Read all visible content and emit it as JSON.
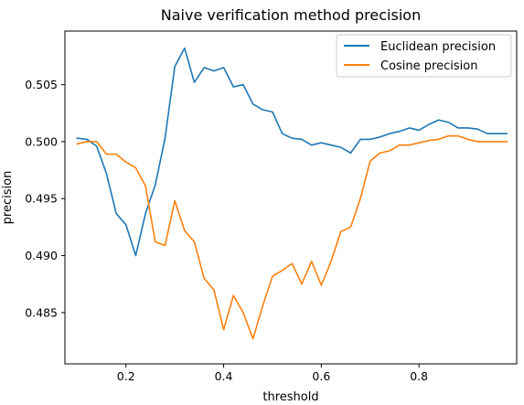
{
  "chart_data": {
    "type": "line",
    "title": "Naive verification method precision",
    "xlabel": "threshold",
    "ylabel": "precision",
    "xlim": [
      0.075,
      1.0
    ],
    "ylim": [
      0.4805,
      0.5097
    ],
    "xticks": [
      0.2,
      0.4,
      0.6,
      0.8
    ],
    "yticks": [
      0.485,
      0.49,
      0.495,
      0.5,
      0.505
    ],
    "grid": false,
    "legend_position": "top-right",
    "x": [
      0.1,
      0.12,
      0.14,
      0.16,
      0.18,
      0.2,
      0.22,
      0.24,
      0.26,
      0.28,
      0.3,
      0.32,
      0.34,
      0.36,
      0.38,
      0.4,
      0.42,
      0.44,
      0.46,
      0.48,
      0.5,
      0.52,
      0.54,
      0.56,
      0.58,
      0.6,
      0.62,
      0.64,
      0.66,
      0.68,
      0.7,
      0.72,
      0.74,
      0.76,
      0.78,
      0.8,
      0.82,
      0.84,
      0.86,
      0.88,
      0.9,
      0.92,
      0.94,
      0.96,
      0.98
    ],
    "series": [
      {
        "name": "Euclidean precision",
        "color": "#1f77b4",
        "values": [
          0.5003,
          0.5002,
          0.4996,
          0.4972,
          0.4937,
          0.4927,
          0.49,
          0.4937,
          0.4962,
          0.5003,
          0.5066,
          0.5082,
          0.5052,
          0.5065,
          0.5062,
          0.5065,
          0.5048,
          0.505,
          0.5033,
          0.5028,
          0.5026,
          0.5007,
          0.5003,
          0.5002,
          0.4997,
          0.4999,
          0.4997,
          0.4995,
          0.499,
          0.5002,
          0.5002,
          0.5004,
          0.5007,
          0.5009,
          0.5012,
          0.501,
          0.5015,
          0.5019,
          0.5017,
          0.5012,
          0.5012,
          0.5011,
          0.5007,
          0.5007,
          0.5007
        ]
      },
      {
        "name": "Cosine precision",
        "color": "#ff7f0e",
        "values": [
          0.4998,
          0.5,
          0.5,
          0.4989,
          0.4989,
          0.4982,
          0.4977,
          0.4961,
          0.4912,
          0.4909,
          0.4948,
          0.4922,
          0.4912,
          0.488,
          0.487,
          0.4835,
          0.4865,
          0.485,
          0.4827,
          0.4856,
          0.4882,
          0.4887,
          0.4893,
          0.4875,
          0.4895,
          0.4874,
          0.4895,
          0.4921,
          0.4925,
          0.495,
          0.4983,
          0.499,
          0.4992,
          0.4997,
          0.4997,
          0.4999,
          0.5001,
          0.5002,
          0.5005,
          0.5005,
          0.5002,
          0.5,
          0.5,
          0.5,
          0.5
        ]
      }
    ]
  }
}
